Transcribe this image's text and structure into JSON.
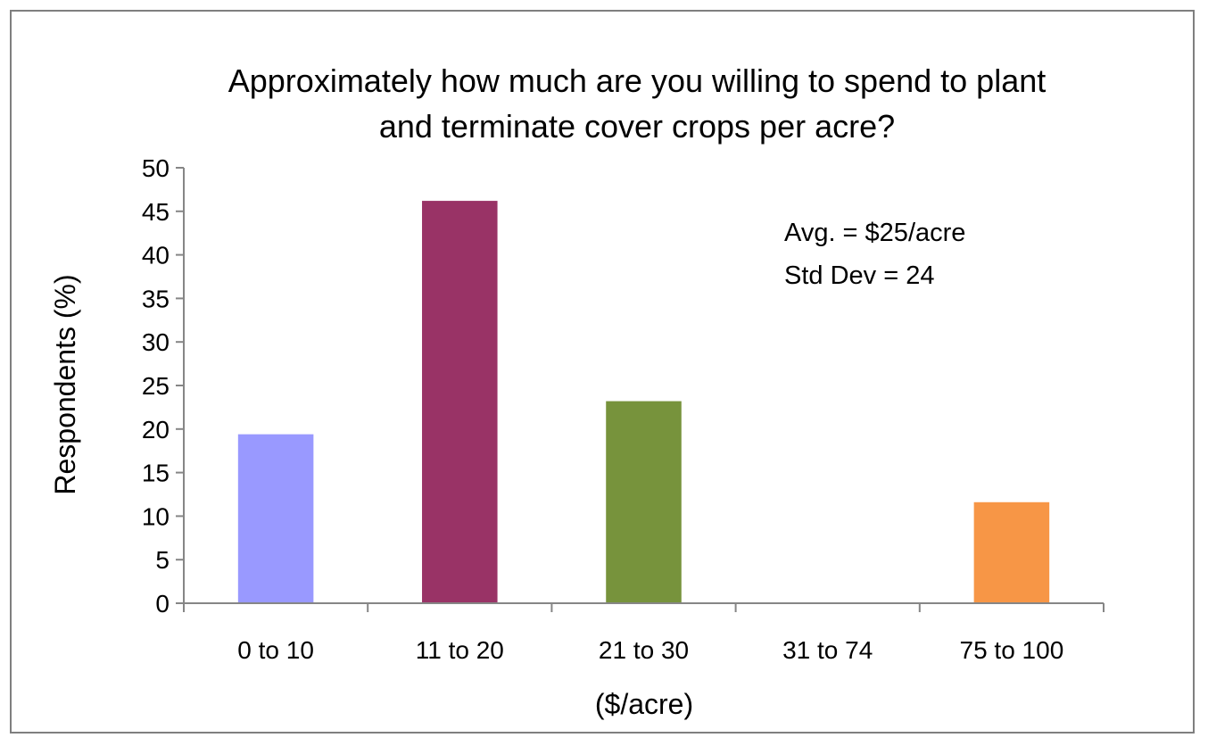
{
  "chart_data": {
    "type": "bar",
    "title_lines": [
      "Approximately how much are you willing to spend to plant",
      "and terminate cover crops per acre?"
    ],
    "categories": [
      "0 to 10",
      "11 to 20",
      "21 to 30",
      "31 to 74",
      "75 to 100"
    ],
    "values": [
      19.4,
      46.2,
      23.2,
      0,
      11.6
    ],
    "bar_colors": [
      "#9999ff",
      "#993366",
      "#77933c",
      "#77933c",
      "#f79646"
    ],
    "xlabel": "($/acre)",
    "ylabel": "Respondents (%)",
    "ylim": [
      0,
      50
    ],
    "y_ticks": [
      "0",
      "5",
      "10",
      "15",
      "20",
      "25",
      "30",
      "35",
      "40",
      "45",
      "50"
    ],
    "annotations": [
      "Avg. = $25/acre",
      "Std Dev = 24"
    ],
    "grid": false,
    "legend": "none"
  }
}
